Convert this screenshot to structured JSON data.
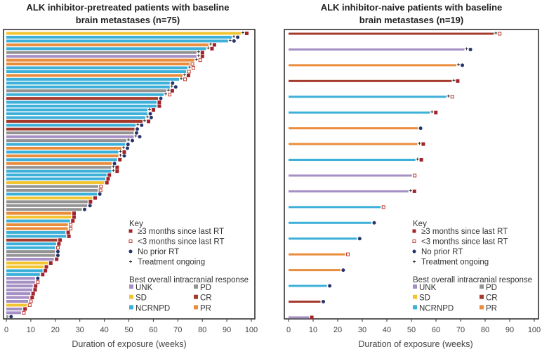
{
  "colors": {
    "UNK": "#a58fc4",
    "PD": "#939393",
    "SD": "#f2c430",
    "CR": "#a43a2c",
    "NCRNPD": "#3cb0d9",
    "PR": "#e98c3b",
    "marker_ge3": "#a3232a",
    "marker_lt3": "#c0392b",
    "marker_none": "#25346b",
    "ongoing": "#222222"
  },
  "legend": {
    "key_title": "Key",
    "markers": [
      {
        "id": "ge3",
        "label": "≥3 months since last RT"
      },
      {
        "id": "lt3",
        "label": "<3 months since last RT"
      },
      {
        "id": "none",
        "label": "No prior RT"
      },
      {
        "id": "ongoing",
        "label": "Treatment ongoing"
      }
    ],
    "response_title": "Best overall intracranial response",
    "responses": [
      "UNK",
      "PD",
      "SD",
      "CR",
      "NCRNPD",
      "PR"
    ]
  },
  "chart_data": [
    {
      "type": "bar",
      "orientation": "horizontal",
      "title": [
        "ALK inhibitor-pretreated patients with baseline",
        "brain metastases (n=75)"
      ],
      "xlabel": "Duration of exposure (weeks)",
      "xlim": [
        0,
        100
      ],
      "xticks": [
        "0",
        "10",
        "20",
        "30",
        "40",
        "50",
        "60",
        "70",
        "80",
        "90",
        "100"
      ],
      "columns": [
        "response",
        "duration_weeks",
        "rt_status",
        "ongoing"
      ],
      "bars": [
        [
          "SD",
          95.7,
          "ge3",
          true
        ],
        [
          "NCRNPD",
          92,
          "none",
          true
        ],
        [
          "NCRNPD",
          90.5,
          "none",
          true
        ],
        [
          "PR",
          82.5,
          "ge3",
          true
        ],
        [
          "NCRNPD",
          81.5,
          "ge3",
          true
        ],
        [
          "PD",
          77.6,
          "ge3",
          true
        ],
        [
          "UNK",
          77.6,
          "ge3",
          true
        ],
        [
          "PR",
          76.7,
          "lt3",
          true
        ],
        [
          "PR",
          74.8,
          "lt3",
          false
        ],
        [
          "NCRNPD",
          73.9,
          "lt3",
          true
        ],
        [
          "NCRNPD",
          73.4,
          "lt3",
          false
        ],
        [
          "PR",
          71.9,
          "ge3",
          true
        ],
        [
          "NCRNPD",
          70.5,
          "lt3",
          true
        ],
        [
          "NCRNPD",
          66.7,
          "none",
          false
        ],
        [
          "NCRNPD",
          66.7,
          "none",
          true
        ],
        [
          "PD",
          65.3,
          "ge3",
          true
        ],
        [
          "NCRNPD",
          64.2,
          "lt3",
          true
        ],
        [
          "CR",
          61.9,
          "none",
          false
        ],
        [
          "NCRNPD",
          61.3,
          "ge3",
          false
        ],
        [
          "NCRNPD",
          61.3,
          "ge3",
          false
        ],
        [
          "NCRNPD",
          57.6,
          "ge3",
          true
        ],
        [
          "NCRNPD",
          57.6,
          "none",
          false
        ],
        [
          "NCRNPD",
          56.7,
          "none",
          true
        ],
        [
          "CR",
          55.6,
          "ge3",
          true
        ],
        [
          "NCRNPD",
          52.8,
          "none",
          true
        ],
        [
          "CR",
          52.3,
          "none",
          false
        ],
        [
          "PD",
          52,
          "none",
          false
        ],
        [
          "UNK",
          52,
          "none",
          true
        ],
        [
          "PD",
          49,
          "none",
          true
        ],
        [
          "NCRNPD",
          48.5,
          "none",
          false
        ],
        [
          "PR",
          47,
          "none",
          true
        ],
        [
          "NCRNPD",
          45.7,
          "ge3",
          true
        ],
        [
          "PR",
          45.7,
          "none",
          true
        ],
        [
          "NCRNPD",
          45.2,
          "ge3",
          false
        ],
        [
          "PR",
          43,
          "none",
          false
        ],
        [
          "PD",
          42.8,
          "ge3",
          true
        ],
        [
          "NCRNPD",
          42.8,
          "ge3",
          true
        ],
        [
          "NCRNPD",
          40.9,
          "ge3",
          false
        ],
        [
          "NCRNPD",
          40.4,
          "ge3",
          false
        ],
        [
          "SD",
          39.9,
          "ge3",
          false
        ],
        [
          "PD",
          37.5,
          "lt3",
          false
        ],
        [
          "PD",
          37.3,
          "lt3",
          false
        ],
        [
          "NCRNPD",
          37,
          "none",
          false
        ],
        [
          "SD",
          35.1,
          "ge3",
          false
        ],
        [
          "PD",
          33.2,
          "ge3",
          false
        ],
        [
          "PD",
          33,
          "none",
          false
        ],
        [
          "PD",
          30.8,
          "none",
          false
        ],
        [
          "PR",
          26.5,
          "ge3",
          false
        ],
        [
          "SD",
          26.5,
          "ge3",
          false
        ],
        [
          "NCRNPD",
          26,
          "ge3",
          false
        ],
        [
          "PR",
          25.1,
          "lt3",
          false
        ],
        [
          "PR",
          25.1,
          "lt3",
          false
        ],
        [
          "NCRNPD",
          24.1,
          "ge3",
          false
        ],
        [
          "NCRNPD",
          24.4,
          "ge3",
          false
        ],
        [
          "CR",
          20.8,
          "ge3",
          false
        ],
        [
          "NCRNPD",
          20.3,
          "ge3",
          false
        ],
        [
          "NCRNPD",
          19.9,
          "lt3",
          false
        ],
        [
          "PD",
          19.9,
          "none",
          false
        ],
        [
          "PD",
          19.9,
          "none",
          false
        ],
        [
          "UNK",
          19.4,
          "ge3",
          false
        ],
        [
          "SD",
          17,
          "ge3",
          false
        ],
        [
          "SD",
          15.2,
          "ge3",
          false
        ],
        [
          "NCRNPD",
          14.8,
          "ge3",
          false
        ],
        [
          "NCRNPD",
          13.7,
          "ge3",
          false
        ],
        [
          "UNK",
          11.7,
          "none",
          false
        ],
        [
          "UNK",
          11.7,
          "lt3",
          false
        ],
        [
          "UNK",
          10.8,
          "ge3",
          false
        ],
        [
          "UNK",
          10.6,
          "ge3",
          false
        ],
        [
          "UNK",
          9.8,
          "ge3",
          false
        ],
        [
          "UNK",
          9.4,
          "ge3",
          false
        ],
        [
          "UNK",
          8.9,
          "lt3",
          false
        ],
        [
          "SD",
          8.4,
          "lt3",
          false
        ],
        [
          "UNK",
          6.5,
          "ge3",
          false
        ],
        [
          "UNK",
          6,
          "lt3",
          false
        ],
        [
          "PD",
          0.8,
          "none",
          false
        ]
      ]
    },
    {
      "type": "bar",
      "orientation": "horizontal",
      "title": [
        "ALK inhibitor-naive patients with baseline",
        "brain metastases (n=19)"
      ],
      "xlabel": "Duration of exposure (weeks)",
      "xlim": [
        0,
        100
      ],
      "xticks": [
        "0",
        "10",
        "20",
        "30",
        "40",
        "50",
        "60",
        "70",
        "80",
        "90",
        "100"
      ],
      "columns": [
        "response",
        "duration_weeks",
        "rt_status",
        "ongoing"
      ],
      "bars": [
        [
          "CR",
          83.5,
          "lt3",
          true
        ],
        [
          "UNK",
          71.6,
          "none",
          true
        ],
        [
          "PR",
          68.3,
          "none",
          true
        ],
        [
          "CR",
          66.4,
          "ge3",
          true
        ],
        [
          "NCRNPD",
          64.2,
          "lt3",
          true
        ],
        [
          "NCRNPD",
          57.5,
          "ge3",
          true
        ],
        [
          "PR",
          52.6,
          "none",
          false
        ],
        [
          "PR",
          52.4,
          "ge3",
          true
        ],
        [
          "NCRNPD",
          51.6,
          "ge3",
          true
        ],
        [
          "UNK",
          50.2,
          "lt3",
          false
        ],
        [
          "UNK",
          48.8,
          "ge3",
          true
        ],
        [
          "NCRNPD",
          37.5,
          "lt3",
          false
        ],
        [
          "NCRNPD",
          33.7,
          "none",
          false
        ],
        [
          "NCRNPD",
          27.8,
          "none",
          false
        ],
        [
          "PR",
          23,
          "lt3",
          false
        ],
        [
          "PR",
          21.1,
          "none",
          false
        ],
        [
          "NCRNPD",
          15.6,
          "none",
          false
        ],
        [
          "CR",
          13,
          "none",
          false
        ],
        [
          "UNK",
          8.3,
          "ge3",
          false
        ]
      ]
    }
  ]
}
